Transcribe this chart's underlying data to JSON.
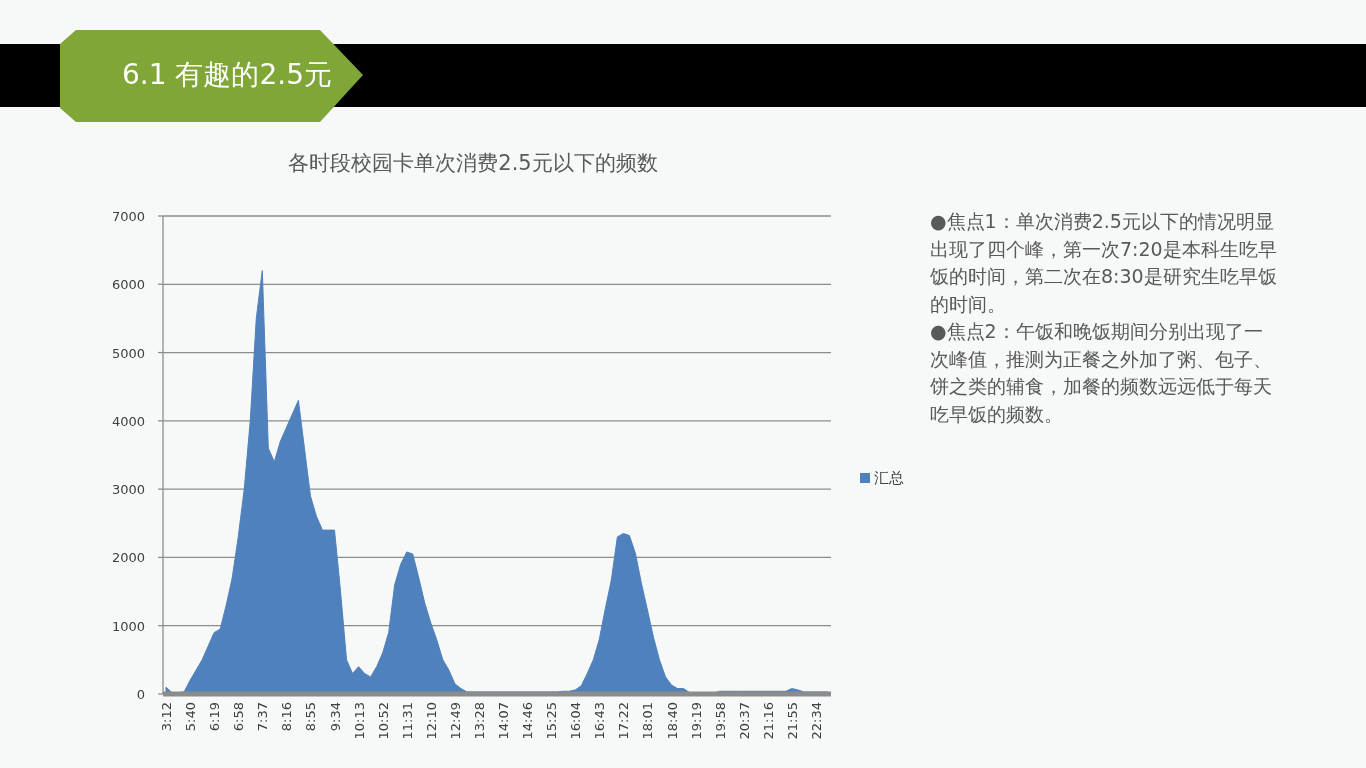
{
  "chart_data": {
    "type": "area",
    "title": "6.1 有趣的2.5元",
    "subtitle": "各时段校园卡单次消费2.5元以下的频数",
    "categories": [
      "3:12",
      null,
      null,
      null,
      "5:40",
      null,
      null,
      null,
      "6:19",
      null,
      null,
      null,
      "6:58",
      null,
      null,
      null,
      "7:37",
      null,
      null,
      null,
      "8:16",
      null,
      null,
      null,
      "8:55",
      null,
      null,
      null,
      "9:34",
      null,
      null,
      null,
      "10:13",
      null,
      null,
      null,
      "10:52",
      null,
      null,
      null,
      "11:31",
      null,
      null,
      null,
      "12:10",
      null,
      null,
      null,
      "12:49",
      null,
      null,
      null,
      "13:28",
      null,
      null,
      null,
      "14:07",
      null,
      null,
      null,
      "14:46",
      null,
      null,
      null,
      "15:25",
      null,
      null,
      null,
      "16:04",
      null,
      null,
      null,
      "16:43",
      null,
      null,
      null,
      "17:22",
      null,
      null,
      null,
      "18:01",
      null,
      null,
      null,
      "18:40",
      null,
      null,
      null,
      "19:19",
      null,
      null,
      null,
      "19:58",
      null,
      null,
      null,
      "20:37",
      null,
      null,
      null,
      "21:16",
      null,
      null,
      null,
      "21:55",
      null,
      null,
      null,
      "22:34",
      null,
      null
    ],
    "series": [
      {
        "name": "汇总",
        "color": "#4f81bd",
        "values": [
          100,
          20,
          20,
          30,
          200,
          350,
          500,
          700,
          900,
          950,
          1300,
          1700,
          2300,
          3000,
          4000,
          5500,
          6200,
          3600,
          3400,
          3700,
          3900,
          4100,
          4300,
          3600,
          2900,
          2600,
          2400,
          2400,
          2400,
          1500,
          500,
          300,
          400,
          300,
          250,
          400,
          600,
          900,
          1600,
          1900,
          2080,
          2050,
          1700,
          1330,
          1040,
          790,
          500,
          350,
          150,
          80,
          30,
          30,
          30,
          30,
          30,
          30,
          30,
          30,
          30,
          30,
          30,
          30,
          30,
          30,
          30,
          30,
          40,
          40,
          60,
          120,
          300,
          500,
          800,
          1250,
          1670,
          2300,
          2350,
          2320,
          2060,
          1620,
          1230,
          830,
          500,
          250,
          130,
          80,
          80,
          20,
          10,
          10,
          10,
          10,
          40,
          40,
          40,
          40,
          40,
          40,
          40,
          40,
          40,
          40,
          40,
          40,
          80,
          60,
          30,
          30,
          30,
          30,
          30
        ]
      }
    ],
    "ylim": [
      0,
      7000
    ],
    "yticks": [
      0,
      1000,
      2000,
      3000,
      4000,
      5000,
      6000,
      7000
    ],
    "grid": "y",
    "legend": "right",
    "annotations": [
      "●焦点1：单次消费2.5元以下的情况明显出现了四个峰，第一次7:20是本科生吃早饭的时间，第二次在8:30是研究生吃早饭的时间。",
      "●焦点2：午饭和晚饭期间分别出现了一次峰值，推测为正餐之外加了粥、包子、饼之类的辅食，加餐的频数远远低于每天吃早饭的频数。"
    ]
  }
}
